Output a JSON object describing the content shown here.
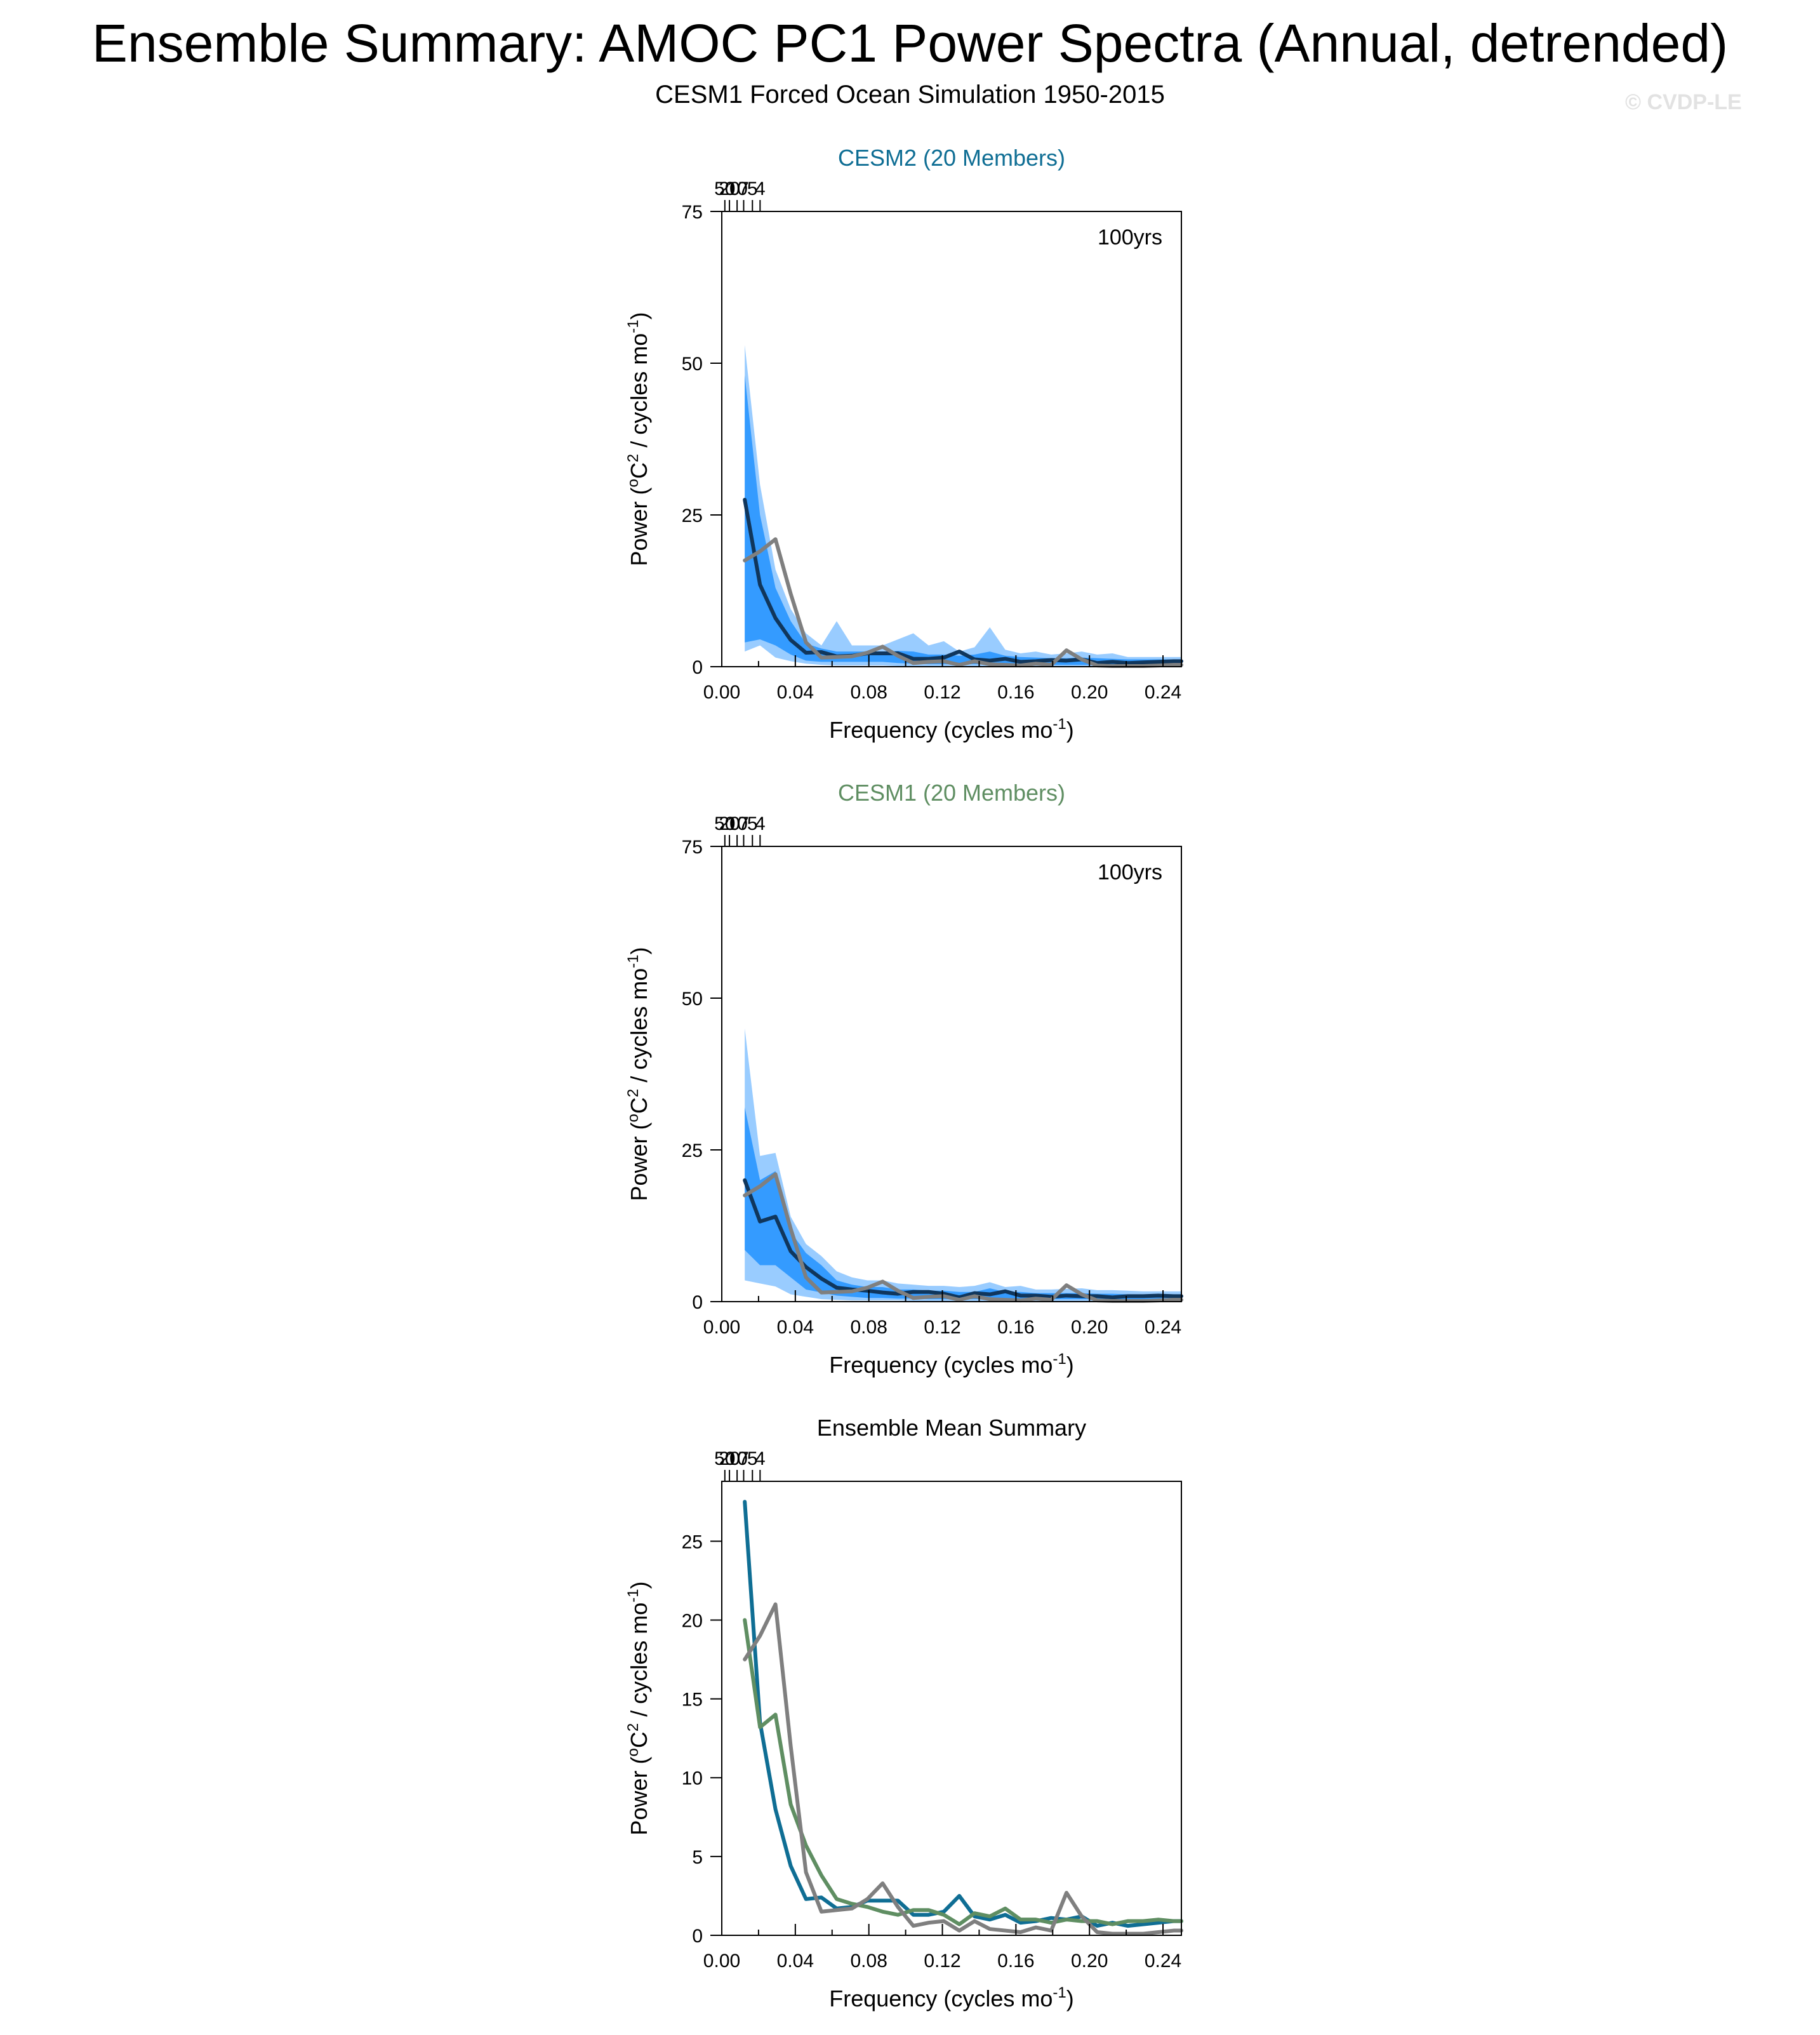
{
  "title": "Ensemble Summary: AMOC PC1 Power Spectra (Annual, detrended)",
  "subtitle": "CESM1 Forced Ocean Simulation 1950-2015",
  "watermark": "© CVDP-LE",
  "colors": {
    "cesm2": "#0f6e94",
    "cesm1": "#5f8e62",
    "observation": "#7f7f7f",
    "ensemble_mean": "#10365c",
    "band_outer": "#99ccff",
    "band_inner": "#349bff"
  },
  "axis_text": {
    "xlabel": "Frequency (cycles mo",
    "xlabel_sup": "-1",
    "xlabel_end": ")",
    "ylabel_start": "Power (",
    "ylabel_o": "o",
    "ylabel_c": "C",
    "ylabel_2": "2",
    "ylabel_mid": " / cycles mo",
    "ylabel_sup": "-1",
    "ylabel_end": ")",
    "period_ticks": [
      "50",
      "20",
      "10",
      "7",
      "5",
      "4"
    ]
  },
  "chart_data": [
    {
      "type": "area",
      "title": "CESM2 (20 Members)",
      "annotation": "100yrs",
      "xlim": [
        0,
        0.25
      ],
      "ylim": [
        0,
        75
      ],
      "x_ticks": [
        0.0,
        0.04,
        0.08,
        0.12,
        0.16,
        0.2,
        0.24
      ],
      "x_tick_labels": [
        "0.00",
        "0.04",
        "0.08",
        "0.12",
        "0.16",
        "0.20",
        "0.24"
      ],
      "y_ticks": [
        0,
        25,
        50,
        75
      ],
      "top_axis_periods": [
        50,
        20,
        10,
        7,
        5,
        4
      ],
      "x": [
        0.0125,
        0.0208,
        0.0292,
        0.0375,
        0.0458,
        0.0542,
        0.0625,
        0.0708,
        0.0792,
        0.0875,
        0.0958,
        0.1042,
        0.1125,
        0.1208,
        0.1292,
        0.1375,
        0.1458,
        0.1542,
        0.1625,
        0.1708,
        0.1792,
        0.1875,
        0.1958,
        0.2042,
        0.2125,
        0.2208,
        0.2292,
        0.2375,
        0.2458,
        0.25
      ],
      "bands": [
        {
          "name": "outer",
          "lower": [
            2.5,
            3.5,
            1.5,
            0.9,
            0.5,
            0.3,
            0.2,
            0.2,
            0.2,
            0.2,
            0.1,
            0.1,
            0.1,
            0.1,
            0.1,
            0.1,
            0.1,
            0.1,
            0.1,
            0.1,
            0.1,
            0.1,
            0.1,
            0.1,
            0.1,
            0.1,
            0.1,
            0.1,
            0.1,
            0.1
          ],
          "upper": [
            53,
            30,
            16,
            9.5,
            5.5,
            3.5,
            7.5,
            3.5,
            3.5,
            3.5,
            4.5,
            5.5,
            3.5,
            4.2,
            2.5,
            3.2,
            6.5,
            2.8,
            2.2,
            2.5,
            2.0,
            2.2,
            2.5,
            2.0,
            2.2,
            1.6,
            1.6,
            1.6,
            1.6,
            1.6
          ]
        },
        {
          "name": "inner",
          "lower": [
            4,
            4.5,
            3.5,
            2.0,
            1.0,
            0.8,
            0.8,
            0.8,
            0.8,
            0.8,
            0.6,
            0.5,
            0.4,
            0.4,
            0.4,
            0.4,
            0.4,
            0.4,
            0.4,
            0.4,
            0.3,
            0.3,
            0.3,
            0.3,
            0.3,
            0.3,
            0.3,
            0.3,
            0.3,
            0.3
          ],
          "upper": [
            48,
            25,
            13,
            7.5,
            3.8,
            3.0,
            2.5,
            2.5,
            2.5,
            2.5,
            2.6,
            2.5,
            2.0,
            2.0,
            1.8,
            2.0,
            2.5,
            1.8,
            1.6,
            1.5,
            1.4,
            1.4,
            1.5,
            1.4,
            1.3,
            1.2,
            1.2,
            1.2,
            1.2,
            1.2
          ]
        }
      ],
      "series": [
        {
          "role": "ensemble_mean",
          "values": [
            27.5,
            13.5,
            8.0,
            4.4,
            2.3,
            2.4,
            1.7,
            1.8,
            2.2,
            2.2,
            2.2,
            1.3,
            1.3,
            1.5,
            2.5,
            1.2,
            1.0,
            1.3,
            0.8,
            0.9,
            1.1,
            1.0,
            1.2,
            0.6,
            0.8,
            0.6,
            0.7,
            0.8,
            0.9,
            0.9
          ]
        },
        {
          "role": "observation",
          "values": [
            17.5,
            19.0,
            21.0,
            12.0,
            4.0,
            1.5,
            1.6,
            1.7,
            2.3,
            3.3,
            1.8,
            0.6,
            0.8,
            0.9,
            0.3,
            0.9,
            0.4,
            0.3,
            0.2,
            0.5,
            0.3,
            2.7,
            1.2,
            0.2,
            0.1,
            0.1,
            0.1,
            0.2,
            0.3,
            0.3
          ]
        }
      ]
    },
    {
      "type": "area",
      "title": "CESM1 (20 Members)",
      "annotation": "100yrs",
      "xlim": [
        0,
        0.25
      ],
      "ylim": [
        0,
        75
      ],
      "x_ticks": [
        0.0,
        0.04,
        0.08,
        0.12,
        0.16,
        0.2,
        0.24
      ],
      "x_tick_labels": [
        "0.00",
        "0.04",
        "0.08",
        "0.12",
        "0.16",
        "0.20",
        "0.24"
      ],
      "y_ticks": [
        0,
        25,
        50,
        75
      ],
      "top_axis_periods": [
        50,
        20,
        10,
        7,
        5,
        4
      ],
      "x": [
        0.0125,
        0.0208,
        0.0292,
        0.0375,
        0.0458,
        0.0542,
        0.0625,
        0.0708,
        0.0792,
        0.0875,
        0.0958,
        0.1042,
        0.1125,
        0.1208,
        0.1292,
        0.1375,
        0.1458,
        0.1542,
        0.1625,
        0.1708,
        0.1792,
        0.1875,
        0.1958,
        0.2042,
        0.2125,
        0.2208,
        0.2292,
        0.2375,
        0.2458,
        0.25
      ],
      "bands": [
        {
          "name": "outer",
          "lower": [
            3.5,
            3.0,
            2.5,
            1.2,
            0.8,
            0.4,
            0.3,
            0.2,
            0.2,
            0.2,
            0.2,
            0.1,
            0.1,
            0.1,
            0.1,
            0.1,
            0.1,
            0.1,
            0.1,
            0.1,
            0.1,
            0.1,
            0.1,
            0.1,
            0.1,
            0.1,
            0.1,
            0.1,
            0.1,
            0.1
          ],
          "upper": [
            45,
            24,
            24.5,
            14,
            9.5,
            7.5,
            5.0,
            4.0,
            3.5,
            3.5,
            3.0,
            2.8,
            2.6,
            2.6,
            2.4,
            2.6,
            3.2,
            2.4,
            2.6,
            2.0,
            2.0,
            2.1,
            2.2,
            1.9,
            1.9,
            1.8,
            1.7,
            1.7,
            1.7,
            1.7
          ]
        },
        {
          "name": "inner",
          "lower": [
            8.5,
            6.0,
            6.0,
            4.0,
            2.0,
            1.5,
            1.0,
            0.8,
            0.6,
            0.6,
            0.5,
            0.5,
            0.4,
            0.4,
            0.4,
            0.4,
            0.4,
            0.4,
            0.4,
            0.4,
            0.4,
            0.4,
            0.4,
            0.4,
            0.4,
            0.4,
            0.4,
            0.4,
            0.4,
            0.4
          ],
          "upper": [
            32,
            20,
            21.5,
            11.5,
            8.0,
            6.0,
            3.5,
            2.8,
            2.4,
            2.4,
            2.0,
            2.0,
            1.8,
            1.8,
            1.6,
            1.6,
            2.2,
            1.6,
            1.6,
            1.4,
            1.4,
            1.4,
            1.4,
            1.3,
            1.3,
            1.2,
            1.2,
            1.2,
            1.2,
            1.2
          ]
        }
      ],
      "series": [
        {
          "role": "ensemble_mean",
          "values": [
            20.0,
            13.2,
            14.0,
            8.3,
            5.7,
            3.8,
            2.3,
            2.0,
            1.8,
            1.5,
            1.3,
            1.6,
            1.6,
            1.3,
            0.7,
            1.4,
            1.2,
            1.7,
            1.0,
            1.0,
            0.8,
            1.0,
            0.9,
            0.9,
            0.7,
            0.9,
            0.9,
            1.0,
            0.9,
            0.9
          ]
        },
        {
          "role": "observation",
          "values": [
            17.5,
            19.0,
            21.0,
            12.0,
            4.0,
            1.5,
            1.6,
            1.7,
            2.3,
            3.3,
            1.8,
            0.6,
            0.8,
            0.9,
            0.3,
            0.9,
            0.4,
            0.3,
            0.2,
            0.5,
            0.3,
            2.7,
            1.2,
            0.2,
            0.1,
            0.1,
            0.1,
            0.2,
            0.3,
            0.3
          ]
        }
      ]
    },
    {
      "type": "line",
      "title": "Ensemble Mean Summary",
      "xlim": [
        0,
        0.25
      ],
      "ylim": [
        0,
        28.8
      ],
      "x_ticks": [
        0.0,
        0.04,
        0.08,
        0.12,
        0.16,
        0.2,
        0.24
      ],
      "x_tick_labels": [
        "0.00",
        "0.04",
        "0.08",
        "0.12",
        "0.16",
        "0.20",
        "0.24"
      ],
      "y_ticks": [
        0,
        5,
        10,
        15,
        20,
        25
      ],
      "top_axis_periods": [
        50,
        20,
        10,
        7,
        5,
        4
      ],
      "x": [
        0.0125,
        0.0208,
        0.0292,
        0.0375,
        0.0458,
        0.0542,
        0.0625,
        0.0708,
        0.0792,
        0.0875,
        0.0958,
        0.1042,
        0.1125,
        0.1208,
        0.1292,
        0.1375,
        0.1458,
        0.1542,
        0.1625,
        0.1708,
        0.1792,
        0.1875,
        0.1958,
        0.2042,
        0.2125,
        0.2208,
        0.2292,
        0.2375,
        0.2458,
        0.25
      ],
      "series": [
        {
          "role": "cesm2",
          "values": [
            27.5,
            13.5,
            8.0,
            4.4,
            2.3,
            2.4,
            1.7,
            1.8,
            2.2,
            2.2,
            2.2,
            1.3,
            1.3,
            1.5,
            2.5,
            1.2,
            1.0,
            1.3,
            0.8,
            0.9,
            1.1,
            1.0,
            1.2,
            0.6,
            0.8,
            0.6,
            0.7,
            0.8,
            0.9,
            0.9
          ]
        },
        {
          "role": "cesm1",
          "values": [
            20.0,
            13.2,
            14.0,
            8.3,
            5.7,
            3.8,
            2.3,
            2.0,
            1.8,
            1.5,
            1.3,
            1.6,
            1.6,
            1.3,
            0.7,
            1.4,
            1.2,
            1.7,
            1.0,
            1.0,
            0.8,
            1.0,
            0.9,
            0.9,
            0.7,
            0.9,
            0.9,
            1.0,
            0.9,
            0.9
          ]
        },
        {
          "role": "observation",
          "values": [
            17.5,
            19.0,
            21.0,
            12.0,
            4.0,
            1.5,
            1.6,
            1.7,
            2.3,
            3.3,
            1.8,
            0.6,
            0.8,
            0.9,
            0.3,
            0.9,
            0.4,
            0.3,
            0.2,
            0.5,
            0.3,
            2.7,
            1.2,
            0.2,
            0.1,
            0.1,
            0.1,
            0.2,
            0.3,
            0.3
          ]
        }
      ]
    }
  ]
}
